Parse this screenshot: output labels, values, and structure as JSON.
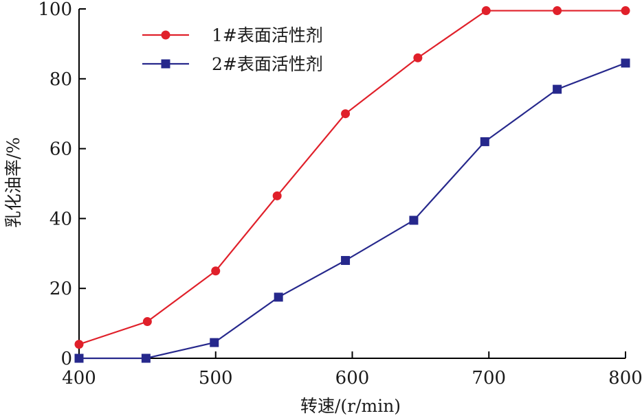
{
  "chart_data": {
    "type": "line",
    "title": "",
    "xlabel": "转速/(r/min)",
    "ylabel": "乳化油率/%",
    "xlim": [
      400,
      800
    ],
    "ylim": [
      0,
      100
    ],
    "xticks": [
      400,
      500,
      600,
      700,
      800
    ],
    "yticks": [
      0,
      20,
      40,
      60,
      80,
      100
    ],
    "grid": false,
    "legend_position": "top-left",
    "series": [
      {
        "name": "1#表面活性剂",
        "color": "#e0202a",
        "marker": "circle",
        "points": [
          [
            400,
            4
          ],
          [
            450,
            10.5
          ],
          [
            500,
            25
          ],
          [
            545,
            46.5
          ],
          [
            595,
            70
          ],
          [
            648,
            86
          ],
          [
            698,
            99.5
          ],
          [
            750,
            99.5
          ],
          [
            800,
            99.5
          ]
        ]
      },
      {
        "name": "2#表面活性剂",
        "color": "#26288c",
        "marker": "square",
        "points": [
          [
            400,
            0
          ],
          [
            449,
            0
          ],
          [
            499,
            4.5
          ],
          [
            546,
            17.5
          ],
          [
            595,
            28
          ],
          [
            645,
            39.5
          ],
          [
            697,
            62
          ],
          [
            750,
            77
          ],
          [
            800,
            84.5
          ]
        ]
      }
    ]
  }
}
